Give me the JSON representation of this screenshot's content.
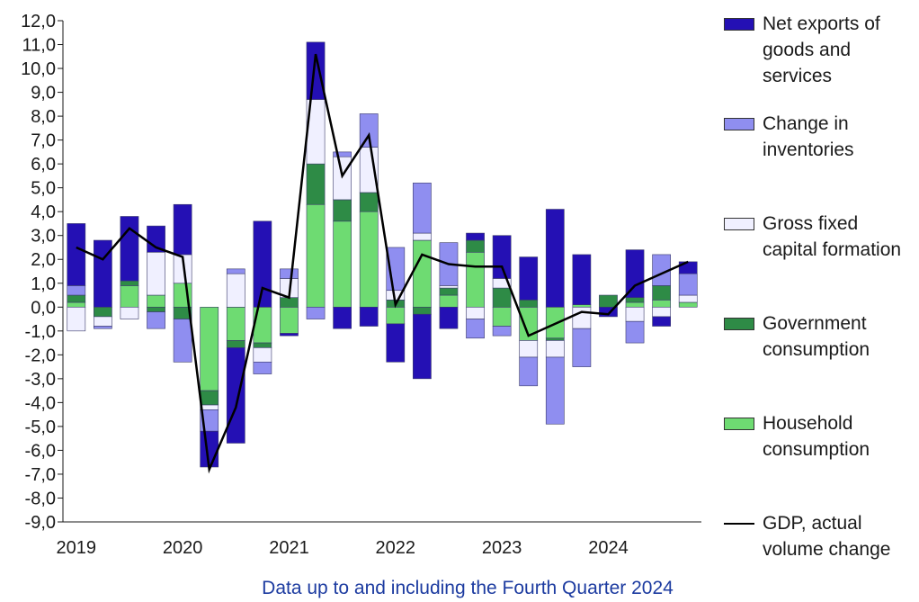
{
  "chart_data": {
    "type": "bar",
    "x_label": "Data up to and including the Fourth Quarter 2024",
    "categories": [
      "2019",
      null,
      null,
      null,
      "2020",
      null,
      null,
      null,
      "2021",
      null,
      null,
      null,
      "2022",
      null,
      null,
      null,
      "2023",
      null,
      null,
      null,
      "2024",
      null,
      null,
      null
    ],
    "series": [
      {
        "name": "Net exports of goods and services",
        "color": "#2410b4",
        "values": [
          2.6,
          2.8,
          2.7,
          1.1,
          2.1,
          -1.5,
          -4.0,
          3.6,
          -0.1,
          2.4,
          -0.9,
          -0.8,
          -1.6,
          -2.7,
          -0.9,
          0.3,
          1.8,
          1.8,
          4.1,
          2.1,
          -0.4,
          2.0,
          -0.4,
          0.5
        ]
      },
      {
        "name": "Change in inventories",
        "color": "#8f8ef0",
        "values": [
          0.4,
          -0.1,
          0.0,
          -0.7,
          -1.8,
          -0.9,
          0.2,
          -0.5,
          0.4,
          -0.5,
          0.2,
          1.4,
          1.8,
          2.1,
          1.8,
          -0.8,
          -0.4,
          -1.2,
          -2.8,
          -1.6,
          0.0,
          -0.9,
          1.3,
          0.9
        ]
      },
      {
        "name": "Gross fixed capital formation",
        "color": "#f0f0ff",
        "values": [
          -1.0,
          -0.4,
          -0.5,
          1.8,
          1.2,
          -0.2,
          1.4,
          -0.6,
          0.8,
          2.7,
          1.8,
          1.9,
          0.4,
          0.3,
          0.1,
          -0.5,
          0.4,
          -0.7,
          -0.7,
          -0.9,
          0.0,
          -0.6,
          -0.4,
          0.3
        ]
      },
      {
        "name": "Government consumption",
        "color": "#2e8b46",
        "values": [
          0.3,
          -0.4,
          0.2,
          -0.2,
          -0.5,
          -0.6,
          -0.3,
          -0.2,
          0.4,
          1.7,
          0.9,
          0.8,
          0.3,
          -0.3,
          0.3,
          0.5,
          0.8,
          0.3,
          -0.1,
          0.0,
          0.5,
          0.2,
          0.6,
          0.0
        ]
      },
      {
        "name": "Household consumption",
        "color": "#6edb72",
        "values": [
          0.2,
          0.0,
          0.9,
          0.5,
          1.0,
          -3.5,
          -1.4,
          -1.5,
          -1.1,
          4.3,
          3.6,
          4.0,
          -0.7,
          2.8,
          0.5,
          2.3,
          -0.8,
          -1.4,
          -1.3,
          0.1,
          0.0,
          0.2,
          0.3,
          0.2
        ]
      },
      {
        "name": "GDP, actual volume change",
        "type": "line",
        "color": "#000000",
        "values": [
          2.5,
          2.0,
          3.3,
          2.5,
          2.1,
          -6.8,
          -4.2,
          0.8,
          0.4,
          10.6,
          5.5,
          7.2,
          0.1,
          2.2,
          1.8,
          1.7,
          1.7,
          -1.2,
          -0.7,
          -0.2,
          -0.3,
          0.9,
          1.4,
          1.9
        ]
      }
    ],
    "ylim": [
      -9,
      12
    ],
    "yticks": [
      {
        "value": -9,
        "label": "-9,0"
      },
      {
        "value": -8,
        "label": "-8,0"
      },
      {
        "value": -7,
        "label": "-7,0"
      },
      {
        "value": -6,
        "label": "-6,0"
      },
      {
        "value": -5,
        "label": "-5,0"
      },
      {
        "value": -4,
        "label": "-4,0"
      },
      {
        "value": -3,
        "label": "-3,0"
      },
      {
        "value": -2,
        "label": "-2,0"
      },
      {
        "value": -1,
        "label": "-1,0"
      },
      {
        "value": 0,
        "label": "0,0"
      },
      {
        "value": 1,
        "label": "1,0"
      },
      {
        "value": 2,
        "label": "2,0"
      },
      {
        "value": 3,
        "label": "3,0"
      },
      {
        "value": 4,
        "label": "4,0"
      },
      {
        "value": 5,
        "label": "5,0"
      },
      {
        "value": 6,
        "label": "6,0"
      },
      {
        "value": 7,
        "label": "7,0"
      },
      {
        "value": 8,
        "label": "8,0"
      },
      {
        "value": 9,
        "label": "9,0"
      },
      {
        "value": 10,
        "label": "10,0"
      },
      {
        "value": 11,
        "label": "11,0"
      },
      {
        "value": 12,
        "label": "12,0"
      }
    ],
    "legend": "right"
  }
}
